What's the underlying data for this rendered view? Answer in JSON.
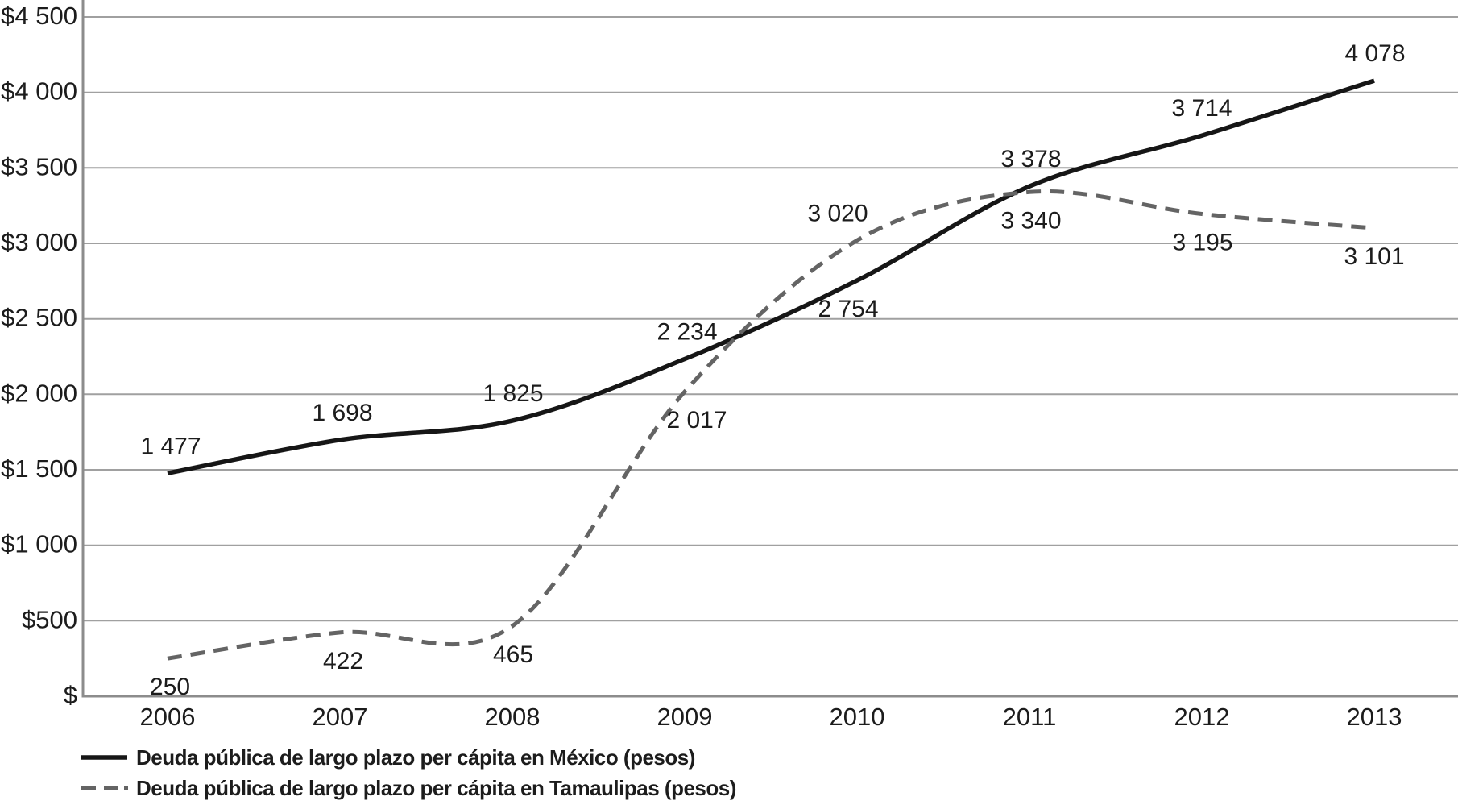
{
  "chart_data": {
    "type": "line",
    "title": "",
    "xlabel": "",
    "ylabel": "",
    "x": [
      2006,
      2007,
      2008,
      2009,
      2010,
      2011,
      2012,
      2013
    ],
    "x_labels": [
      "2006",
      "2007",
      "2008",
      "2009",
      "2010",
      "2011",
      "2012",
      "2013"
    ],
    "ylim": [
      0,
      4500
    ],
    "y_ticks": [
      0,
      500,
      1000,
      1500,
      2000,
      2500,
      3000,
      3500,
      4000,
      4500
    ],
    "y_tick_labels": [
      "$",
      "$500",
      "$1 000",
      "$1 500",
      "$2 000",
      "$2 500",
      "$3 000",
      "$3 500",
      "$4 000",
      "$4 500"
    ],
    "grid": true,
    "legend_position": "bottom-left",
    "series": [
      {
        "key": "mexico",
        "name": "Deuda pública de largo plazo per cápita en México (pesos)",
        "line_style": "solid",
        "color": "#161616",
        "values": [
          1477,
          1698,
          1825,
          2234,
          2754,
          3378,
          3714,
          4078
        ],
        "value_labels": [
          "1 477",
          "1 698",
          "1 825",
          "2 234",
          "2 754",
          "3 378",
          "3 714",
          "4 078"
        ],
        "label_side": [
          "above",
          "above",
          "above",
          "above",
          "below",
          "above",
          "above",
          "above"
        ]
      },
      {
        "key": "tamaulipas",
        "name": "Deuda pública de largo plazo per cápita en Tamaulipas (pesos)",
        "line_style": "dashed",
        "color": "#646464",
        "values": [
          250,
          422,
          465,
          2017,
          3020,
          3340,
          3195,
          3101
        ],
        "value_labels": [
          "250",
          "422",
          "465",
          "2 017",
          "3 020",
          "3 340",
          "3 195",
          "3 101"
        ],
        "label_side": [
          "below",
          "below",
          "below",
          "below",
          "above",
          "below",
          "below",
          "below"
        ]
      }
    ]
  },
  "colors": {
    "background": "#ffffff",
    "text": "#1c1c1c",
    "gridline": "#a0a0a0",
    "axis": "#8c8c8c",
    "mexico_line": "#161616",
    "tamaulipas_line": "#646464"
  }
}
